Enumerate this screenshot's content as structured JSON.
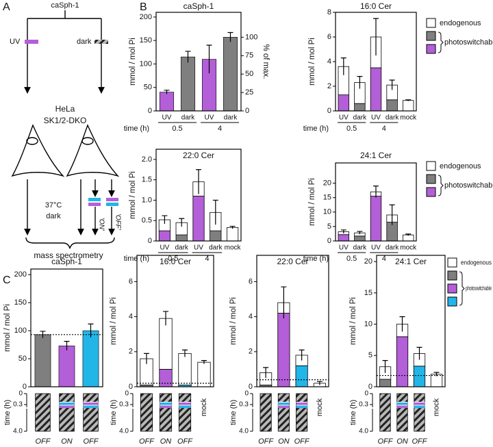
{
  "panel_labels": [
    "A",
    "B",
    "C"
  ],
  "schematic": {
    "compound": "caSph-1",
    "uv": "UV",
    "dark": "dark",
    "cell_type": "HeLa",
    "cell_line": "SK1/2-DKO",
    "temperature": "37°C",
    "condition": "dark",
    "on": "'ON'",
    "off": "'OFF'",
    "readout": "mass spectrometry"
  },
  "chart_data": [
    {
      "type": "bar",
      "title": "caSph-1",
      "y_label": "mmol / mol Pi",
      "y2_label": "% of max.",
      "categories": [
        "UV",
        "dark",
        "UV",
        "dark"
      ],
      "group_labels": [
        "0.5",
        "4"
      ],
      "time_label": "time (h)",
      "values": [
        40,
        115,
        110,
        157
      ],
      "errors": [
        4,
        12,
        30,
        10
      ],
      "colors": [
        "#b35fd7",
        "#7f7f7f",
        "#b35fd7",
        "#7f7f7f"
      ],
      "ylim": [
        0,
        210
      ],
      "yticks": [
        0,
        50,
        100,
        150,
        200
      ],
      "y2lim": [
        0,
        133.8
      ],
      "y2ticks": [
        0,
        25,
        50,
        75,
        100
      ]
    },
    {
      "type": "stacked_bar",
      "title": "16:0 Cer",
      "y_label": "mmol / mol Pi",
      "categories": [
        "UV",
        "dark",
        "UV",
        "dark",
        "mock"
      ],
      "group_labels": [
        "0.5",
        "4"
      ],
      "time_label": "time (h)",
      "series": [
        {
          "name": "photoswitchable",
          "colors": [
            "#b35fd7",
            "#7f7f7f",
            "#b35fd7",
            "#7f7f7f",
            null
          ],
          "values": [
            1.3,
            0.6,
            3.5,
            0.9,
            null
          ]
        },
        {
          "name": "endogenous",
          "color": "#ffffff",
          "values": [
            2.3,
            1.7,
            2.5,
            1.2,
            0.85
          ]
        }
      ],
      "errors": [
        0.7,
        0.5,
        1.5,
        0.4,
        0.05
      ],
      "ylim": [
        0,
        8
      ],
      "yticks": [
        0,
        2,
        4,
        6,
        8
      ],
      "legend": true,
      "legend_colors": [
        "#7f7f7f",
        "#b35fd7"
      ]
    },
    {
      "type": "stacked_bar",
      "title": "22:0 Cer",
      "y_label": "mmol / mol Pi",
      "categories": [
        "UV",
        "dark",
        "UV",
        "dark",
        "mock"
      ],
      "group_labels": [
        "0.5",
        "4"
      ],
      "time_label": "time (h)",
      "series": [
        {
          "name": "photoswitchable",
          "colors": [
            "#b35fd7",
            "#7f7f7f",
            "#b35fd7",
            "#7f7f7f",
            null
          ],
          "values": [
            0.25,
            0.15,
            1.1,
            0.25,
            null
          ]
        },
        {
          "name": "endogenous",
          "color": "#ffffff",
          "values": [
            0.27,
            0.3,
            0.35,
            0.45,
            0.33
          ]
        }
      ],
      "errors": [
        0.1,
        0.1,
        0.3,
        0.3,
        0.03
      ],
      "ylim": [
        0,
        2.25
      ],
      "yticks": [
        0,
        0.5,
        {
          "value": 1,
          "label": "1.0"
        },
        1.5,
        {
          "value": 2,
          "label": "2.0"
        }
      ],
      "legend": false
    },
    {
      "type": "stacked_bar",
      "title": "24:1 Cer",
      "y_label": "mmol / mol Pi",
      "categories": [
        "UV",
        "dark",
        "UV",
        "dark",
        "mock"
      ],
      "group_labels": [
        "0.5",
        "4"
      ],
      "time_label": "time (h)",
      "series": [
        {
          "name": "photoswitchable",
          "colors": [
            "#b35fd7",
            "#7f7f7f",
            "#b35fd7",
            "#7f7f7f",
            null
          ],
          "values": [
            2.2,
            1.7,
            15.5,
            6.5,
            null
          ]
        },
        {
          "name": "endogenous",
          "color": "#ffffff",
          "values": [
            1,
            1.1,
            1.5,
            2.5,
            2.1
          ]
        }
      ],
      "errors": [
        0.6,
        0.5,
        2,
        3.5,
        0.3
      ],
      "ylim": [
        0,
        27
      ],
      "yticks": [
        0,
        5,
        10,
        15,
        20
      ],
      "legend": true,
      "legend_colors": [
        "#7f7f7f",
        "#b35fd7"
      ]
    },
    {
      "type": "bar",
      "title": "caSph-1",
      "y_label": "mmol / mol Pi",
      "categories": [
        "OFF",
        "ON",
        "OFF"
      ],
      "time_label": "time (h)",
      "time_ticks": [
        0,
        0.3,
        {
          "value": 4,
          "label": "4.0"
        }
      ],
      "values": [
        93,
        73,
        100
      ],
      "errors": [
        6,
        8,
        12
      ],
      "colors": [
        "#7f7f7f",
        "#b35fd7",
        "#22b5e8"
      ],
      "reference_line": 93,
      "ylim": [
        0,
        210
      ],
      "yticks": [
        0,
        50,
        100,
        150,
        200
      ]
    },
    {
      "type": "stacked_bar",
      "title": "16:0 Cer",
      "y_label": "mmol / mol Pi",
      "categories": [
        "OFF",
        "ON",
        "OFF",
        "mock"
      ],
      "time_label": "time (h)",
      "time_ticks": [
        0,
        0.3,
        {
          "value": 4,
          "label": "4.0"
        }
      ],
      "series": [
        {
          "name": "photoswitchable",
          "colors": [
            "#7f7f7f",
            "#b35fd7",
            "#22b5e8",
            null
          ],
          "values": [
            0.1,
            1.0,
            0.1,
            null
          ]
        },
        {
          "name": "endogenous",
          "color": "#ffffff",
          "values": [
            1.5,
            2.9,
            1.8,
            1.4
          ]
        }
      ],
      "errors": [
        0.3,
        0.4,
        0.2,
        0.1
      ],
      "reference_line": 0.2,
      "ylim": [
        0,
        7.5
      ],
      "yticks": [
        0,
        2,
        4,
        6
      ],
      "legend": false
    },
    {
      "type": "stacked_bar",
      "title": "22:0 Cer",
      "y_label": "mmol / mol Pi",
      "categories": [
        "OFF",
        "ON",
        "OFF",
        "mock"
      ],
      "time_label": "time (h)",
      "time_ticks": [
        0,
        0.3,
        {
          "value": 4,
          "label": "4.0"
        }
      ],
      "series": [
        {
          "name": "photoswitchable",
          "colors": [
            "#7f7f7f",
            "#b35fd7",
            "#22b5e8",
            null
          ],
          "values": [
            0.1,
            4.2,
            1.2,
            null
          ]
        },
        {
          "name": "endogenous",
          "color": "#ffffff",
          "values": [
            0.7,
            0.6,
            0.6,
            0.2
          ]
        }
      ],
      "errors": [
        0.3,
        0.9,
        0.3,
        0.1
      ],
      "reference_line": 0.4,
      "ylim": [
        0,
        7.5
      ],
      "yticks": [
        0,
        2,
        4,
        6
      ],
      "legend": false
    },
    {
      "type": "stacked_bar",
      "title": "24:1 Cer",
      "y_label": "mmol / mol Pi",
      "categories": [
        "OFF",
        "ON",
        "OFF",
        "mock"
      ],
      "time_label": "time (h)",
      "time_ticks": [
        0,
        0.3,
        {
          "value": 4,
          "label": "4.0"
        }
      ],
      "series": [
        {
          "name": "photoswitchable",
          "colors": [
            "#7f7f7f",
            "#b35fd7",
            "#22b5e8",
            null
          ],
          "values": [
            1.2,
            8,
            3.3,
            null
          ]
        },
        {
          "name": "endogenous",
          "color": "#ffffff",
          "values": [
            2,
            2,
            2,
            2
          ]
        }
      ],
      "errors": [
        1,
        1.2,
        1,
        0.3
      ],
      "reference_line": 1.8,
      "ylim": [
        0,
        21
      ],
      "yticks": [
        0,
        5,
        10,
        15,
        20
      ],
      "legend": true,
      "legend_colors": [
        "#7f7f7f",
        "#b35fd7",
        "#22b5e8"
      ]
    }
  ]
}
